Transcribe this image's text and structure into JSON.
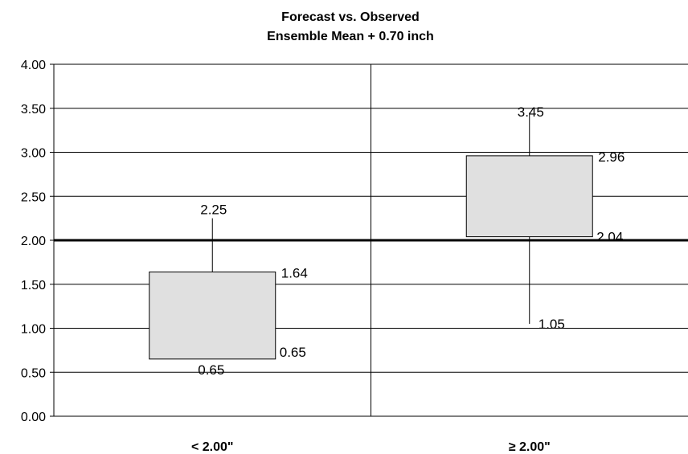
{
  "chart_data": {
    "type": "box",
    "title": "Forecast vs. Observed",
    "subtitle": "Ensemble Mean + 0.70 inch",
    "categories": [
      "< 2.00\"",
      "≥ 2.00\""
    ],
    "ylim": [
      0,
      4
    ],
    "yticks": [
      "0.00",
      "0.50",
      "1.00",
      "1.50",
      "2.00",
      "2.50",
      "3.00",
      "3.50",
      "4.00"
    ],
    "grid": true,
    "reference_line": 2.0,
    "boxes": [
      {
        "category": "< 2.00\"",
        "min": 0.65,
        "q1": 0.65,
        "q3": 1.64,
        "max": 2.25,
        "labels": {
          "max": "2.25",
          "q3": "1.64",
          "q1": "0.65",
          "min": "0.65"
        }
      },
      {
        "category": "≥ 2.00\"",
        "min": 1.05,
        "q1": 2.04,
        "q3": 2.96,
        "max": 3.45,
        "labels": {
          "max": "3.45",
          "q3": "2.96",
          "q1": "2.04",
          "min": "1.05"
        }
      }
    ],
    "colors": {
      "box_fill": "#e0e0e0",
      "line": "#000000"
    }
  }
}
